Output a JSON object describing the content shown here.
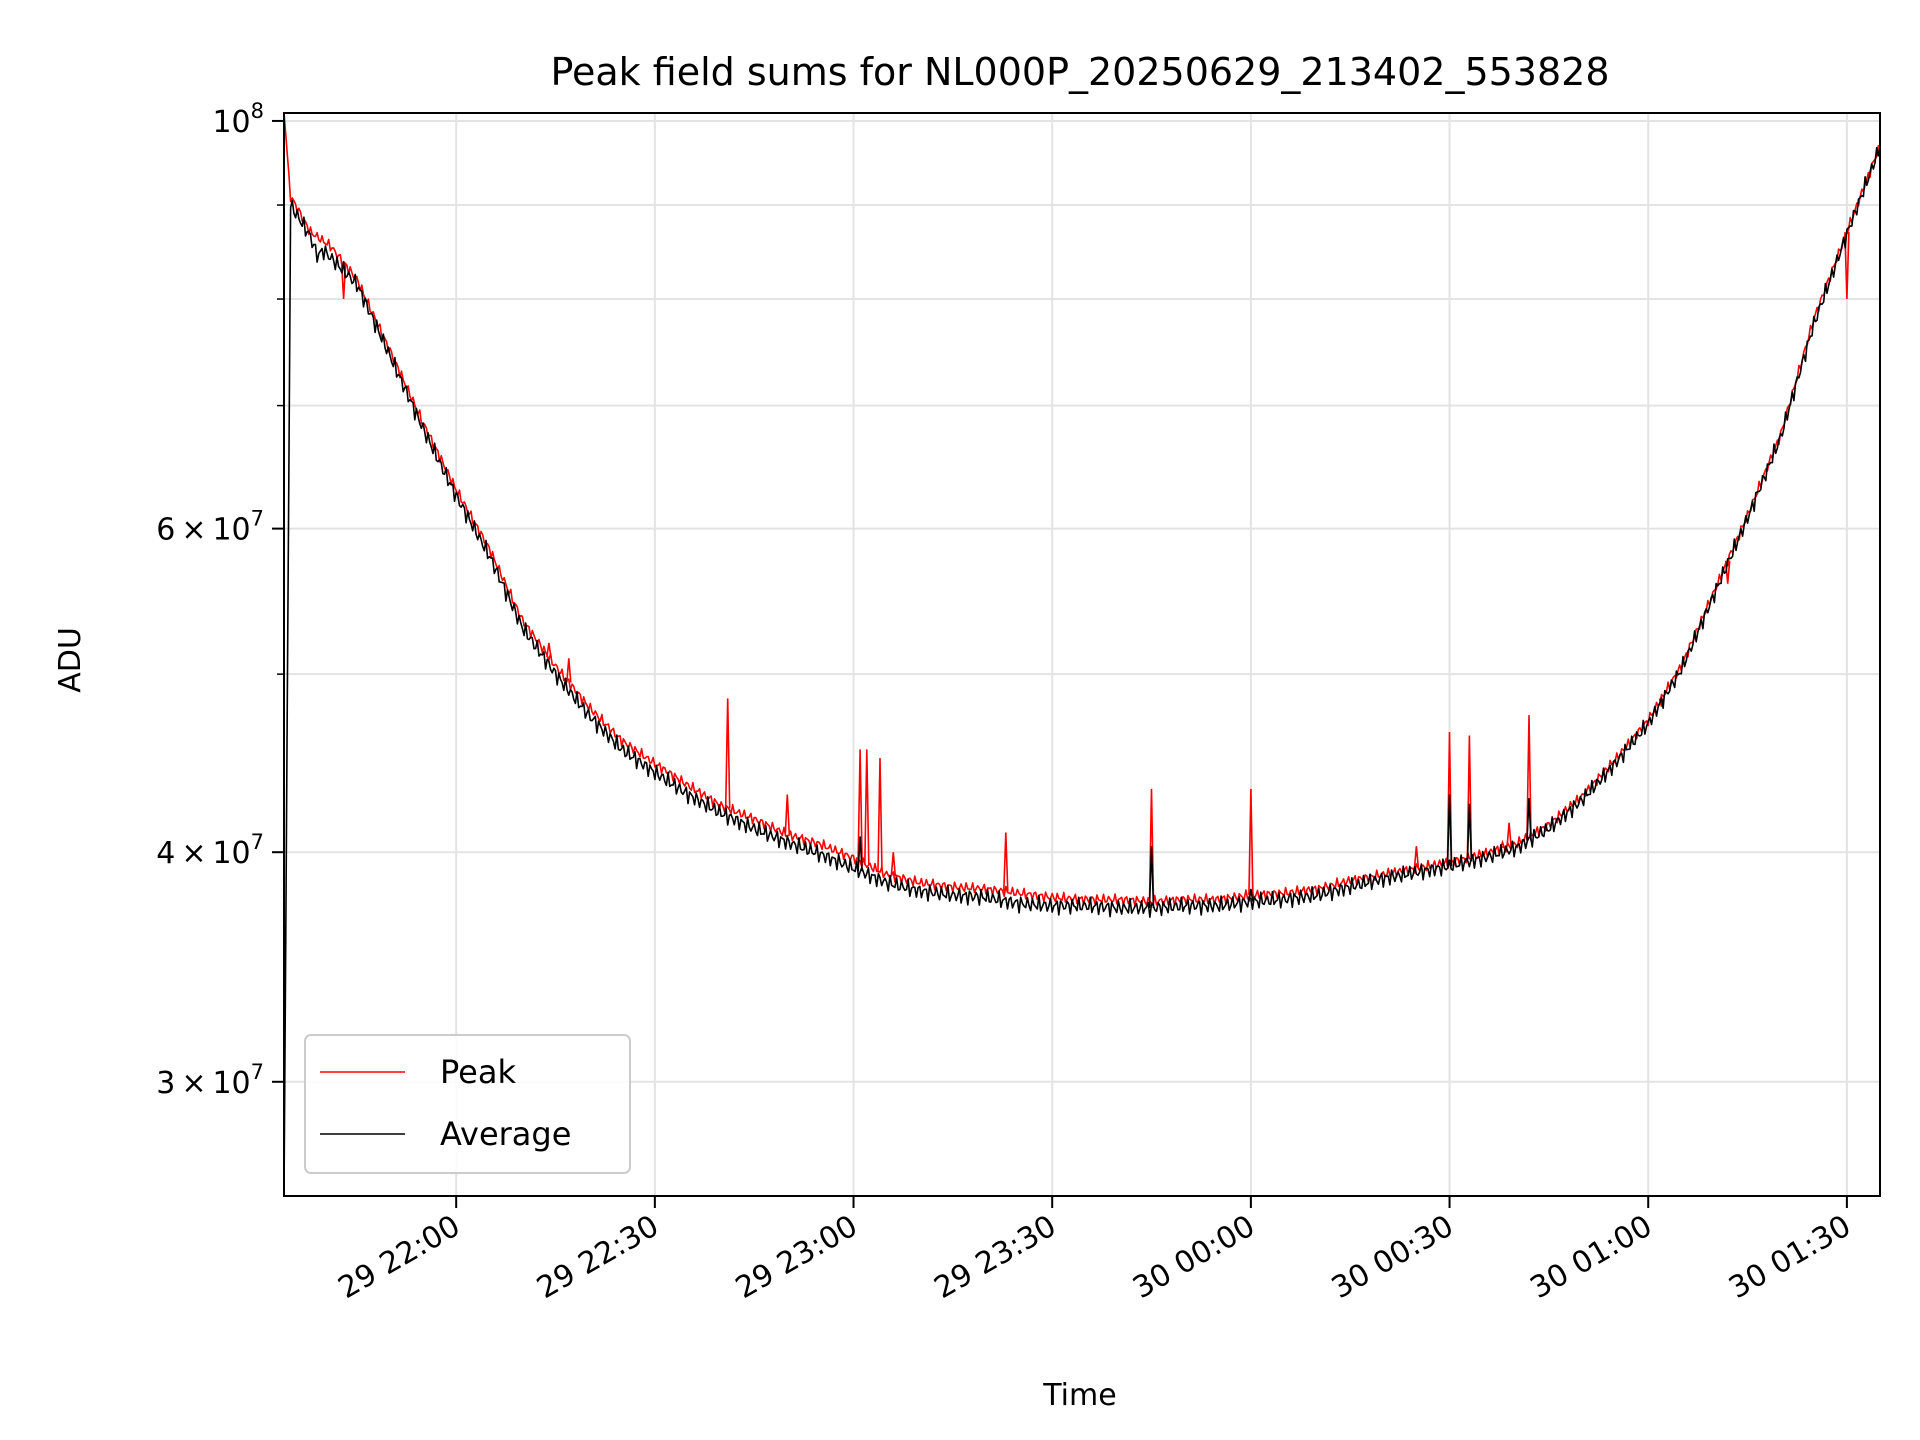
{
  "chart_data": {
    "type": "line",
    "title": "Peak field sums for NL000P_20250629_213402_553828",
    "xlabel": "Time",
    "ylabel": "ADU",
    "x_start": "2025-06-29 21:34",
    "x_end": "2025-06-30 01:35",
    "xlim": [
      "2025-06-29 21:34",
      "2025-06-30 01:35"
    ],
    "ylim": [
      26000000,
      101000000
    ],
    "yscale": "log",
    "grid": true,
    "legend_position": "lower-left",
    "x_tick_labels": [
      "29 22:00",
      "29 22:30",
      "29 23:00",
      "29 23:30",
      "30 00:00",
      "30 00:30",
      "30 01:00",
      "30 01:30"
    ],
    "x_tick_times": [
      "2025-06-29 22:00",
      "2025-06-29 22:30",
      "2025-06-29 23:00",
      "2025-06-29 23:30",
      "2025-06-30 00:00",
      "2025-06-30 00:30",
      "2025-06-30 01:00",
      "2025-06-30 01:30"
    ],
    "y_tick_labels": [
      {
        "value": 100000000,
        "mant": "10",
        "exp": "8"
      },
      {
        "value": 60000000,
        "mant": "6 × 10",
        "exp": "7"
      },
      {
        "value": 40000000,
        "mant": "4 × 10",
        "exp": "7"
      },
      {
        "value": 30000000,
        "mant": "3 × 10",
        "exp": "7"
      }
    ],
    "minor_y_grid": [
      90000000,
      80000000,
      70000000,
      50000000
    ],
    "series": [
      {
        "name": "Peak",
        "color": "#ff0000",
        "x": [
          "2025-06-29 21:34",
          "2025-06-29 21:35",
          "2025-06-29 21:38",
          "2025-06-29 21:41",
          "2025-06-29 21:45",
          "2025-06-29 21:50",
          "2025-06-29 21:55",
          "2025-06-29 22:00",
          "2025-06-29 22:05",
          "2025-06-29 22:10",
          "2025-06-29 22:15",
          "2025-06-29 22:20",
          "2025-06-29 22:25",
          "2025-06-29 22:30",
          "2025-06-29 22:35",
          "2025-06-29 22:40",
          "2025-06-29 22:45",
          "2025-06-29 22:50",
          "2025-06-29 22:55",
          "2025-06-29 23:00",
          "2025-06-29 23:05",
          "2025-06-29 23:10",
          "2025-06-29 23:15",
          "2025-06-29 23:20",
          "2025-06-29 23:25",
          "2025-06-29 23:30",
          "2025-06-29 23:35",
          "2025-06-29 23:40",
          "2025-06-29 23:45",
          "2025-06-29 23:50",
          "2025-06-29 23:55",
          "2025-06-30 00:00",
          "2025-06-30 00:05",
          "2025-06-30 00:10",
          "2025-06-30 00:15",
          "2025-06-30 00:20",
          "2025-06-30 00:25",
          "2025-06-30 00:30",
          "2025-06-30 00:35",
          "2025-06-30 00:40",
          "2025-06-30 00:45",
          "2025-06-30 00:50",
          "2025-06-30 00:55",
          "2025-06-30 01:00",
          "2025-06-30 01:05",
          "2025-06-30 01:10",
          "2025-06-30 01:15",
          "2025-06-30 01:20",
          "2025-06-30 01:25",
          "2025-06-30 01:30",
          "2025-06-30 01:35"
        ],
        "y": [
          101000000,
          91000000,
          87000000,
          85500000,
          82000000,
          75000000,
          68500000,
          63000000,
          58500000,
          53500000,
          50500000,
          48000000,
          46000000,
          44700000,
          43500000,
          42400000,
          41700000,
          40900000,
          40400000,
          39700000,
          38900000,
          38500000,
          38300000,
          38200000,
          38000000,
          37800000,
          37700000,
          37700000,
          37600000,
          37700000,
          37700000,
          37900000,
          38000000,
          38200000,
          38600000,
          38900000,
          39200000,
          39500000,
          39900000,
          40400000,
          41400000,
          42900000,
          44900000,
          47200000,
          50500000,
          55500000,
          61000000,
          67500000,
          78000000,
          87000000,
          97000000
        ],
        "spikes": [
          {
            "x": "2025-06-29 21:43",
            "y": 80000000
          },
          {
            "x": "2025-06-29 22:14",
            "y": 52000000
          },
          {
            "x": "2025-06-29 22:17",
            "y": 51000000
          },
          {
            "x": "2025-06-29 22:41",
            "y": 48500000
          },
          {
            "x": "2025-06-29 22:50",
            "y": 43000000
          },
          {
            "x": "2025-06-29 23:01",
            "y": 45500000
          },
          {
            "x": "2025-06-29 23:02",
            "y": 45500000
          },
          {
            "x": "2025-06-29 23:04",
            "y": 45000000
          },
          {
            "x": "2025-06-29 23:06",
            "y": 40000000
          },
          {
            "x": "2025-06-29 23:23",
            "y": 41000000
          },
          {
            "x": "2025-06-29 23:45",
            "y": 43300000
          },
          {
            "x": "2025-06-30 00:00",
            "y": 43300000
          },
          {
            "x": "2025-06-30 00:25",
            "y": 40300000
          },
          {
            "x": "2025-06-30 00:30",
            "y": 46500000
          },
          {
            "x": "2025-06-30 00:33",
            "y": 46300000
          },
          {
            "x": "2025-06-30 00:38",
            "y": 40500000
          },
          {
            "x": "2025-06-30 00:39",
            "y": 41500000
          },
          {
            "x": "2025-06-30 00:42",
            "y": 47500000
          },
          {
            "x": "2025-06-30 01:02",
            "y": 48000000
          },
          {
            "x": "2025-06-30 01:12",
            "y": 56000000
          },
          {
            "x": "2025-06-30 01:30",
            "y": 80000000
          }
        ]
      },
      {
        "name": "Average",
        "color": "#000000",
        "x": [
          "2025-06-29 21:34",
          "2025-06-29 21:35",
          "2025-06-29 21:38",
          "2025-06-29 21:39",
          "2025-06-29 21:40",
          "2025-06-29 21:45",
          "2025-06-29 21:50",
          "2025-06-29 21:55",
          "2025-06-29 22:00",
          "2025-06-29 22:05",
          "2025-06-29 22:10",
          "2025-06-29 22:15",
          "2025-06-29 22:20",
          "2025-06-29 22:25",
          "2025-06-29 22:30",
          "2025-06-29 22:35",
          "2025-06-29 22:40",
          "2025-06-29 22:45",
          "2025-06-29 22:50",
          "2025-06-29 22:55",
          "2025-06-29 23:00",
          "2025-06-29 23:05",
          "2025-06-29 23:10",
          "2025-06-29 23:15",
          "2025-06-29 23:20",
          "2025-06-29 23:25",
          "2025-06-29 23:30",
          "2025-06-29 23:35",
          "2025-06-29 23:40",
          "2025-06-29 23:45",
          "2025-06-29 23:50",
          "2025-06-29 23:55",
          "2025-06-30 00:00",
          "2025-06-30 00:05",
          "2025-06-30 00:10",
          "2025-06-30 00:15",
          "2025-06-30 00:20",
          "2025-06-30 00:25",
          "2025-06-30 00:30",
          "2025-06-30 00:35",
          "2025-06-30 00:40",
          "2025-06-30 00:45",
          "2025-06-30 00:50",
          "2025-06-30 00:55",
          "2025-06-30 01:00",
          "2025-06-30 01:05",
          "2025-06-30 01:10",
          "2025-06-30 01:15",
          "2025-06-30 01:20",
          "2025-06-30 01:25",
          "2025-06-30 01:30",
          "2025-06-30 01:35"
        ],
        "y": [
          26000000,
          90000000,
          86500000,
          84500000,
          85000000,
          81500000,
          74500000,
          68000000,
          62500000,
          58000000,
          53000000,
          50000000,
          47500000,
          45500000,
          44200000,
          43000000,
          42000000,
          41200000,
          40500000,
          39900000,
          39200000,
          38500000,
          38100000,
          37900000,
          37800000,
          37500000,
          37400000,
          37400000,
          37300000,
          37300000,
          37400000,
          37400000,
          37600000,
          37700000,
          37900000,
          38300000,
          38700000,
          39000000,
          39300000,
          39700000,
          40200000,
          41200000,
          42700000,
          44700000,
          47000000,
          50300000,
          55300000,
          60800000,
          67300000,
          77500000,
          86800000,
          96800000
        ],
        "spikes": [
          {
            "x": "2025-06-29 23:01",
            "y": 40800000
          },
          {
            "x": "2025-06-29 23:45",
            "y": 40300000
          },
          {
            "x": "2025-06-30 00:00",
            "y": 38200000
          },
          {
            "x": "2025-06-30 00:30",
            "y": 43000000
          },
          {
            "x": "2025-06-30 00:33",
            "y": 42500000
          },
          {
            "x": "2025-06-30 00:42",
            "y": 42800000
          }
        ]
      }
    ]
  }
}
